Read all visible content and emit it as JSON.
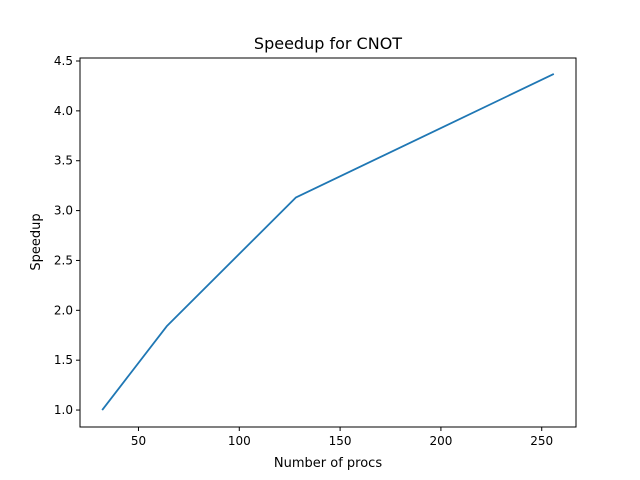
{
  "chart_data": {
    "type": "line",
    "title": "Speedup for CNOT",
    "xlabel": "Number of procs",
    "ylabel": "Speedup",
    "xlim": [
      21,
      267
    ],
    "ylim": [
      0.83,
      4.53
    ],
    "xticks": [
      50,
      100,
      150,
      200,
      250
    ],
    "yticks": [
      1.0,
      1.5,
      2.0,
      2.5,
      3.0,
      3.5,
      4.0,
      4.5
    ],
    "xtick_labels": [
      "50",
      "100",
      "150",
      "200",
      "250"
    ],
    "ytick_labels": [
      "1.0",
      "1.5",
      "2.0",
      "2.5",
      "3.0",
      "3.5",
      "4.0",
      "4.5"
    ],
    "grid": false,
    "series": [
      {
        "color": "#1f77b4",
        "x": [
          32,
          64,
          128,
          256
        ],
        "y": [
          1.0,
          1.84,
          3.13,
          4.37
        ]
      }
    ]
  }
}
